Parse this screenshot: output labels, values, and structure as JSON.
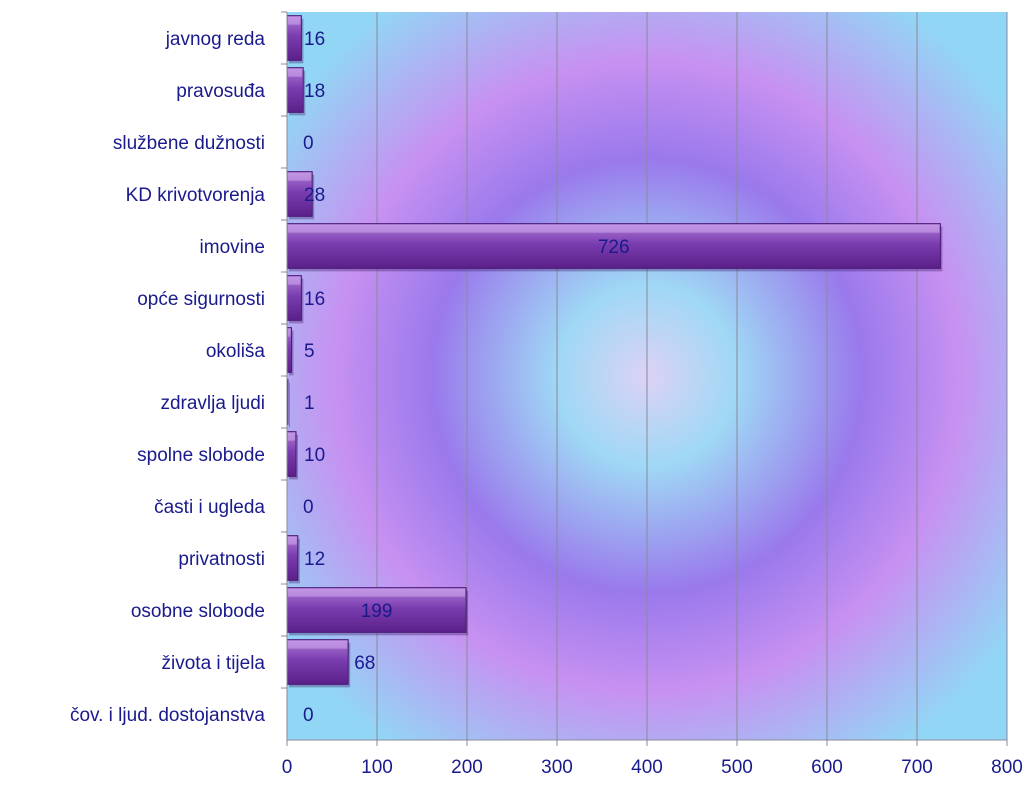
{
  "chart_data": {
    "type": "bar",
    "orientation": "horizontal",
    "categories": [
      "javnog reda",
      "pravosuđa",
      "službene dužnosti",
      "KD krivotvorenja",
      "imovine",
      "opće sigurnosti",
      "okoliša",
      "zdravlja ljudi",
      "spolne slobode",
      "časti i ugleda",
      "privatnosti",
      "osobne slobode",
      "života i tijela",
      "čov. i ljud. dostojanstva"
    ],
    "values": [
      16,
      18,
      0,
      28,
      726,
      16,
      5,
      1,
      10,
      0,
      12,
      199,
      68,
      0
    ],
    "title": "",
    "xlabel": "",
    "ylabel": "",
    "xlim": [
      0,
      800
    ],
    "x_ticks": [
      0,
      100,
      200,
      300,
      400,
      500,
      600,
      700,
      800
    ],
    "grid": "vertical major gridlines",
    "legend": "none",
    "data_labels": true,
    "colors": {
      "bar_fill": "#7a3db0",
      "bar_highlight": "#b07ad8",
      "text": "#1a1a8c",
      "grid": "#8a8a9a",
      "background_center": "#dcd2f5",
      "background_mid": "#a98aee",
      "background_edge": "#9dd6f2"
    }
  }
}
